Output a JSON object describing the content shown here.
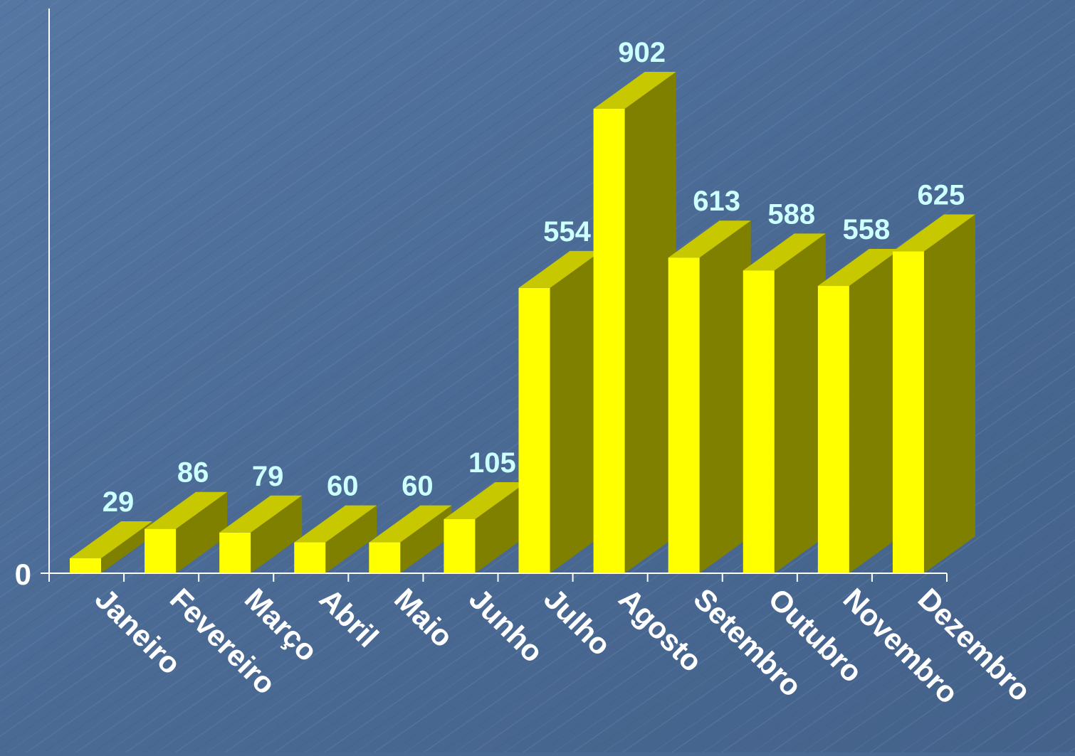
{
  "chart_data": {
    "type": "bar",
    "style": "3d-column",
    "categories": [
      "Janeiro",
      "Fevereiro",
      "Março",
      "Abril",
      "Maio",
      "Junho",
      "Julho",
      "Agosto",
      "Setembro",
      "Outubro",
      "Novembro",
      "Dezembro"
    ],
    "values": [
      29,
      86,
      79,
      60,
      60,
      105,
      554,
      902,
      613,
      588,
      558,
      625
    ],
    "ytick_labels": [
      "0"
    ],
    "ylim": [
      0,
      1000
    ],
    "grid": false,
    "legend": false
  },
  "colors": {
    "background": "#4a6a94",
    "bar_front": "#ffff00",
    "bar_top": "#c8c800",
    "bar_side": "#808000",
    "data_label": "#ccffff",
    "axis_label": "#ffffff",
    "axis_line": "#ffffff"
  }
}
